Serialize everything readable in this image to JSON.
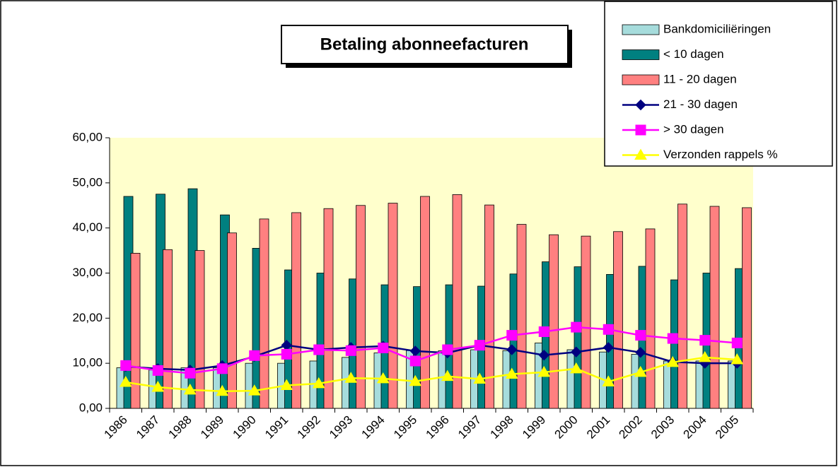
{
  "chart_data": {
    "type": "bar",
    "title": "Betaling abonneefacturen",
    "categories": [
      "1986",
      "1987",
      "1988",
      "1989",
      "1990",
      "1991",
      "1992",
      "1993",
      "1994",
      "1995",
      "1996",
      "1997",
      "1998",
      "1999",
      "2000",
      "2001",
      "2002",
      "2003",
      "2004",
      "2005"
    ],
    "series": [
      {
        "name": "Bankdomiciliëringen",
        "type": "bar",
        "color": "#a6dcdc",
        "values": [
          9,
          8.5,
          9,
          9,
          10,
          10,
          10.5,
          11.3,
          12.3,
          12.8,
          12.8,
          13,
          12.8,
          14.5,
          13,
          12.5,
          12,
          10.5,
          10.5,
          10.5
        ]
      },
      {
        "name": "< 10 dagen",
        "type": "bar",
        "color": "#008080",
        "values": [
          47,
          47.5,
          48.7,
          42.9,
          35.5,
          30.7,
          30,
          28.7,
          27.4,
          27,
          27.4,
          27.1,
          29.8,
          32.5,
          31.4,
          29.7,
          31.5,
          28.5,
          30,
          31
        ]
      },
      {
        "name": "11 - 20 dagen",
        "type": "bar",
        "color": "#ff8080",
        "values": [
          34.4,
          35.2,
          35,
          38.9,
          42,
          43.4,
          44.3,
          45,
          45.5,
          47,
          47.4,
          45.1,
          40.8,
          38.5,
          38.2,
          39.2,
          39.8,
          45.3,
          44.8,
          44.5
        ]
      },
      {
        "name": "21 - 30 dagen",
        "type": "line",
        "marker": "diamond",
        "color": "#000080",
        "values": [
          9.3,
          8.8,
          8.5,
          9.5,
          11.5,
          14,
          13,
          13.5,
          13.8,
          12.7,
          12.3,
          14,
          13,
          11.8,
          12.5,
          13.5,
          12.4,
          10.3,
          10,
          10
        ]
      },
      {
        "name": "> 30 dagen",
        "type": "line",
        "marker": "square",
        "color": "#ff00ff",
        "values": [
          9.5,
          8.4,
          7.8,
          8.8,
          11.7,
          12,
          13,
          12.8,
          13.4,
          10.5,
          13,
          14,
          16.2,
          17,
          18,
          17.5,
          16.2,
          15.5,
          15.1,
          14.5
        ]
      },
      {
        "name": "Verzonden rappels %",
        "type": "line",
        "marker": "triangle",
        "color": "#ffff00",
        "values": [
          5.8,
          4.7,
          4.1,
          3.8,
          3.9,
          5.1,
          5.5,
          6.7,
          6.6,
          6,
          7.1,
          6.5,
          7.6,
          8,
          8.8,
          5.9,
          8,
          10.2,
          11.3,
          10.8
        ]
      }
    ],
    "ylim": [
      0,
      60
    ],
    "yticks": [
      {
        "value": 0,
        "label": "0,00"
      },
      {
        "value": 10,
        "label": "10,00"
      },
      {
        "value": 20,
        "label": "20,00"
      },
      {
        "value": 30,
        "label": "30,00"
      },
      {
        "value": 40,
        "label": "40,00"
      },
      {
        "value": 50,
        "label": "50,00"
      },
      {
        "value": 60,
        "label": "60,00"
      }
    ],
    "grid": false,
    "legend": "top-right",
    "plot_background": "#ffffcc"
  }
}
